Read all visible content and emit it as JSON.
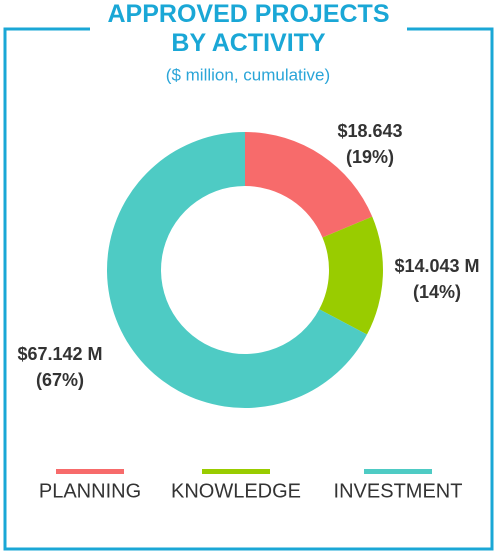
{
  "chart_data": {
    "type": "donut",
    "title": "APPROVED PROJECTS BY ACTIVITY",
    "subtitle": "($ million, cumulative)",
    "categories": [
      "PLANNING",
      "KNOWLEDGE",
      "INVESTMENT"
    ],
    "values": [
      18.643,
      14.043,
      67.142
    ],
    "value_labels": [
      "$18.643",
      "$14.043 M",
      "$67.142 M"
    ],
    "percent_labels": [
      "(19%)",
      "(14%)",
      "(67%)"
    ],
    "colors": [
      "#f76b6b",
      "#99cc00",
      "#4ecbc4"
    ],
    "legend": "bottom"
  }
}
